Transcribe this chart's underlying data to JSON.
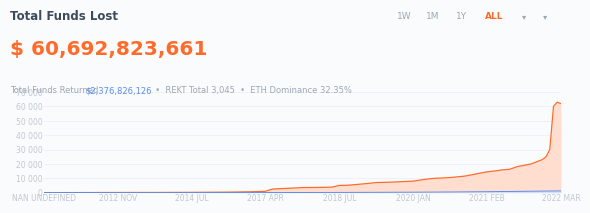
{
  "title": "Total Funds Lost",
  "title_fontsize": 8.5,
  "title_color": "#3D4A5C",
  "big_number": "$ 60,692,823,661",
  "big_number_color": "#FF6B2B",
  "big_number_fontsize": 14.5,
  "subtitle_part1": "Total Funds Returned ",
  "subtitle_part2": "$2,376,826,126",
  "subtitle_part3": "  •  REKT Total 3,045  •  ETH Dominance 32.35%",
  "subtitle_funds_color": "#5B8DEF",
  "subtitle_base_color": "#9BA8B5",
  "subtitle_fontsize": 6.0,
  "bg_color": "#FAFBFC",
  "chart_bg_color": "#FAFBFC",
  "x_labels": [
    "NAN UNDEFINED",
    "2012 NOV",
    "2014 JUL",
    "2017 APR",
    "2018 JUL",
    "2020 JAN",
    "2021 FEB",
    "2022 MAR"
  ],
  "x_positions": [
    0,
    1,
    2,
    3,
    4,
    5,
    6,
    7
  ],
  "yticks": [
    0,
    10000,
    20000,
    30000,
    40000,
    50000,
    60000,
    70000
  ],
  "orange_line_color": "#FF6B2B",
  "orange_fill_color": "#FFDED0",
  "blue_line_color": "#5B8DEF",
  "blue_fill_color": "#D0DEFF",
  "orange_data_x": [
    0,
    0.3,
    0.7,
    1.0,
    1.5,
    2.0,
    2.5,
    2.8,
    3.0,
    3.05,
    3.1,
    3.3,
    3.5,
    3.7,
    3.9,
    4.0,
    4.1,
    4.2,
    4.35,
    4.5,
    4.65,
    4.8,
    5.0,
    5.1,
    5.2,
    5.3,
    5.4,
    5.5,
    5.6,
    5.7,
    5.8,
    5.9,
    6.0,
    6.1,
    6.2,
    6.3,
    6.35,
    6.4,
    6.5,
    6.6,
    6.65,
    6.7,
    6.75,
    6.8,
    6.85,
    6.9,
    6.95,
    7.0
  ],
  "orange_data_y": [
    0,
    0,
    50,
    80,
    100,
    180,
    350,
    600,
    900,
    1800,
    2500,
    3000,
    3500,
    3600,
    3800,
    5000,
    5100,
    5500,
    6200,
    7000,
    7200,
    7500,
    8000,
    8800,
    9500,
    10000,
    10200,
    10500,
    11000,
    11500,
    12500,
    13500,
    14500,
    15000,
    15800,
    16200,
    17000,
    18000,
    19000,
    20000,
    21000,
    22000,
    23000,
    25000,
    30000,
    60000,
    63000,
    62000
  ],
  "blue_data_x": [
    0,
    1.0,
    2.0,
    3.0,
    3.5,
    4.0,
    4.5,
    5.0,
    5.5,
    6.0,
    6.5,
    7.0
  ],
  "blue_data_y": [
    0,
    0,
    0,
    50,
    80,
    120,
    200,
    300,
    450,
    650,
    900,
    1200
  ],
  "ylim": [
    0,
    70000
  ],
  "xlim": [
    0,
    7.0
  ],
  "top_right_labels": [
    "1W",
    "1M",
    "1Y",
    "ALL"
  ],
  "top_right_color": "#9BA8B5",
  "top_right_active_color": "#FF6B2B",
  "top_right_fontsize": 6.5,
  "axis_label_color": "#C0C8D2",
  "axis_tick_fontsize": 5.5,
  "grid_color": "#EAEEF2"
}
